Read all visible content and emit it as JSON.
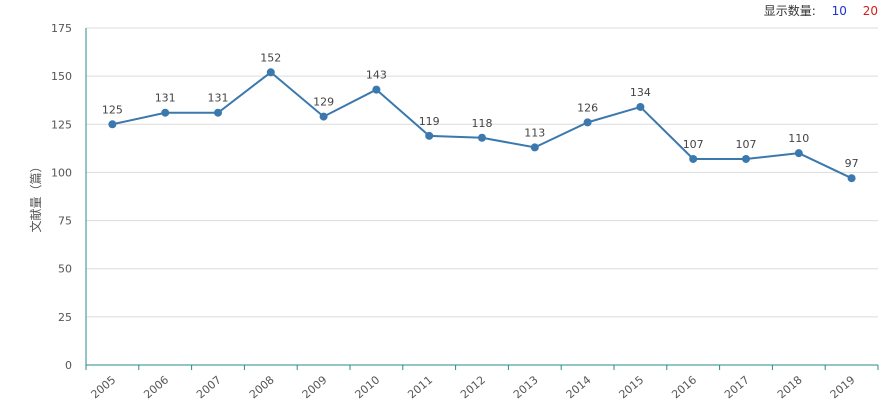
{
  "controls": {
    "label": "显示数量:",
    "options": [
      "10",
      "20"
    ],
    "option_colors": [
      "#1f2fd1",
      "#d11f1f"
    ]
  },
  "chart_data": {
    "type": "line",
    "title": "",
    "xlabel": "",
    "ylabel": "文献量（篇）",
    "categories": [
      "2005",
      "2006",
      "2007",
      "2008",
      "2009",
      "2010",
      "2011",
      "2012",
      "2013",
      "2014",
      "2015",
      "2016",
      "2017",
      "2018",
      "2019"
    ],
    "series": [
      {
        "values": [
          125,
          131,
          131,
          152,
          129,
          143,
          119,
          118,
          113,
          126,
          134,
          107,
          107,
          110,
          97
        ],
        "color": "#3a78ad"
      }
    ],
    "ylim": [
      0,
      175
    ],
    "yticks": [
      0,
      25,
      50,
      75,
      100,
      125,
      150,
      175
    ],
    "grid": true,
    "axis_color": "#2a8a8a",
    "data_labels": true
  }
}
